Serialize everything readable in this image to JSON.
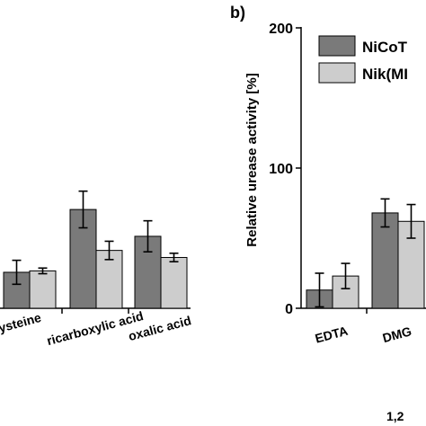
{
  "chart_data": [
    {
      "type": "bar",
      "panel_label": "",
      "categories": [
        "ysteine",
        "ricarboxylic acid",
        "oxalic acid"
      ],
      "series": [
        {
          "name": "NiCoT",
          "color": "#7a7a7a",
          "values": [
            51,
            140,
            102
          ],
          "errors": [
            17,
            26,
            22
          ]
        },
        {
          "name": "Nik(MI",
          "color": "#cdcdcd",
          "values": [
            53,
            82,
            72
          ],
          "errors": [
            4,
            13,
            6
          ]
        }
      ],
      "ylim": [
        0,
        200
      ],
      "ylabel": "",
      "xlabel": ""
    },
    {
      "type": "bar",
      "panel_label": "b)",
      "categories": [
        "EDTA",
        "DMG"
      ],
      "series": [
        {
          "name": "NiCoT",
          "color": "#7a7a7a",
          "values": [
            13,
            68
          ],
          "errors": [
            12,
            10
          ]
        },
        {
          "name": "Nik(MI",
          "color": "#cdcdcd",
          "values": [
            23,
            62
          ],
          "errors": [
            9,
            12
          ]
        }
      ],
      "yticks": [
        0,
        100,
        200
      ],
      "ylim": [
        0,
        200
      ],
      "ylabel": "Relative urease activity [%]",
      "xlabel": "1,2",
      "legend": "top-right"
    }
  ]
}
